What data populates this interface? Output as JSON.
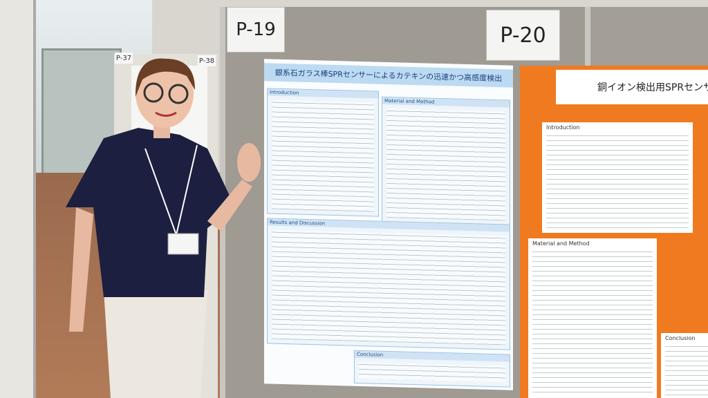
{
  "board_numbers": [
    "P-19",
    "P-20"
  ],
  "back_tags": [
    "P-37",
    "P-38"
  ],
  "poster_1": {
    "title": "銀系石ガラス棒SPRセンサーによるカテキンの迅速かつ高感度検出",
    "sections": [
      "Introduction",
      "Material and Method",
      "Results and Discussion",
      "Conclusion"
    ]
  },
  "poster_2": {
    "title": "銅イオン検出用SPRセンサー",
    "sections": [
      "Introduction",
      "Material and Method",
      "Conclusion"
    ]
  }
}
